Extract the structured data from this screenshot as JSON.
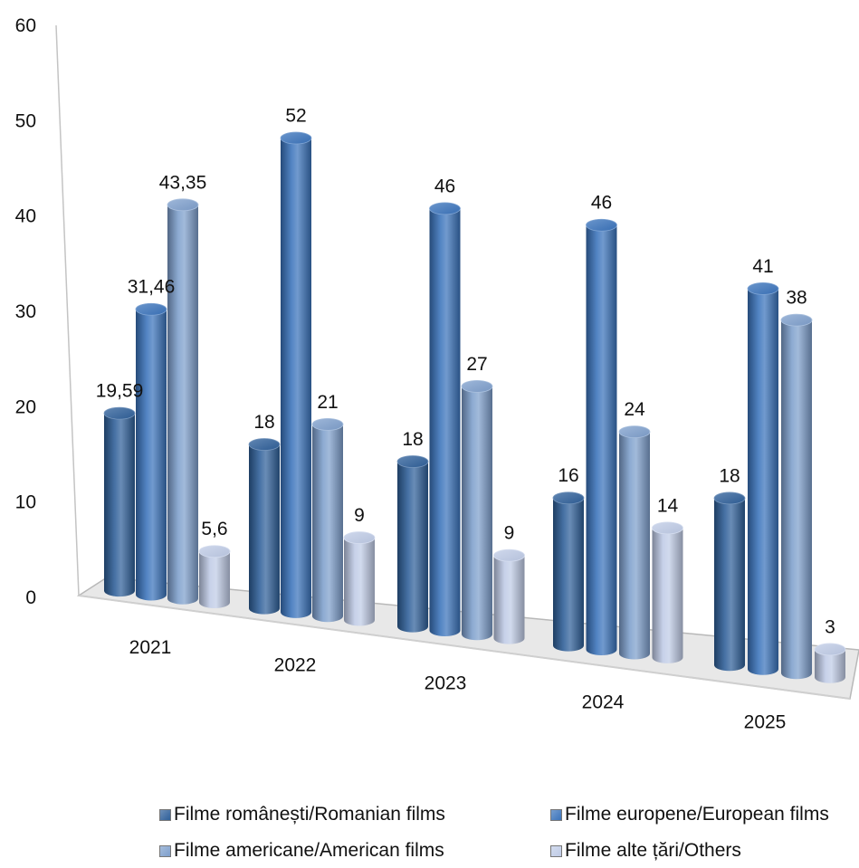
{
  "chart_data": {
    "type": "bar",
    "style": "3d-cylinder",
    "categories": [
      "2021",
      "2022",
      "2023",
      "2024",
      "2025"
    ],
    "series": [
      {
        "name": "Filme românești/Romanian films",
        "values": [
          19.59,
          18,
          18,
          16,
          18
        ],
        "labels": [
          "19,59",
          "18",
          "18",
          "16",
          "18"
        ],
        "color": "#2E5F99"
      },
      {
        "name": "Filme europene/European films",
        "values": [
          31.46,
          52,
          46,
          46,
          41
        ],
        "labels": [
          "31,46",
          "52",
          "46",
          "46",
          "41"
        ],
        "color": "#3A73BB"
      },
      {
        "name": "Filme americane/American films",
        "values": [
          43.35,
          21,
          27,
          24,
          38
        ],
        "labels": [
          "43,35",
          "21",
          "27",
          "24",
          "38"
        ],
        "color": "#7E9FCC"
      },
      {
        "name": "Filme alte țări/Others",
        "values": [
          5.6,
          9,
          9,
          14,
          3
        ],
        "labels": [
          "5,6",
          "9",
          "9",
          "14",
          "3"
        ],
        "color": "#BFCBE6"
      }
    ],
    "yticks": [
      "0",
      "10",
      "20",
      "30",
      "40",
      "50",
      "60"
    ],
    "ylim": [
      0,
      60
    ],
    "grid": false,
    "legend_position": "bottom"
  }
}
